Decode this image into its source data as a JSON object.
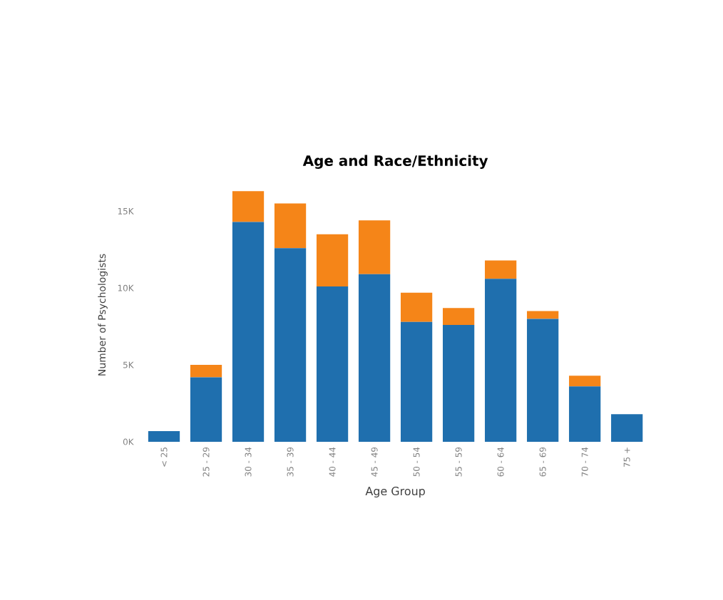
{
  "chart_data": {
    "type": "bar",
    "title": "Age and Race/Ethnicity",
    "xlabel": "Age Group",
    "ylabel": "Number of Psychologists",
    "categories": [
      "< 25",
      "25 - 29",
      "30 - 34",
      "35 - 39",
      "40 - 44",
      "45 - 49",
      "50 - 54",
      "55 - 59",
      "60 - 64",
      "65 - 69",
      "70 - 74",
      "75 +"
    ],
    "stacked": true,
    "series": [
      {
        "color": "#1f6fae",
        "values": [
          0.7,
          4.2,
          14.3,
          12.6,
          10.1,
          10.9,
          7.8,
          7.6,
          10.6,
          8.0,
          3.6,
          1.8
        ]
      },
      {
        "color": "#f58518",
        "values": [
          0,
          0.8,
          2.0,
          2.9,
          3.4,
          3.5,
          1.9,
          1.1,
          1.2,
          0.5,
          0.7,
          0
        ]
      }
    ],
    "ylim": [
      0,
      16.5
    ],
    "yticks": [
      {
        "value": 0,
        "label": "0K"
      },
      {
        "value": 5,
        "label": "5K"
      },
      {
        "value": 10,
        "label": "10K"
      },
      {
        "value": 15,
        "label": "15K"
      }
    ],
    "grid": false
  }
}
